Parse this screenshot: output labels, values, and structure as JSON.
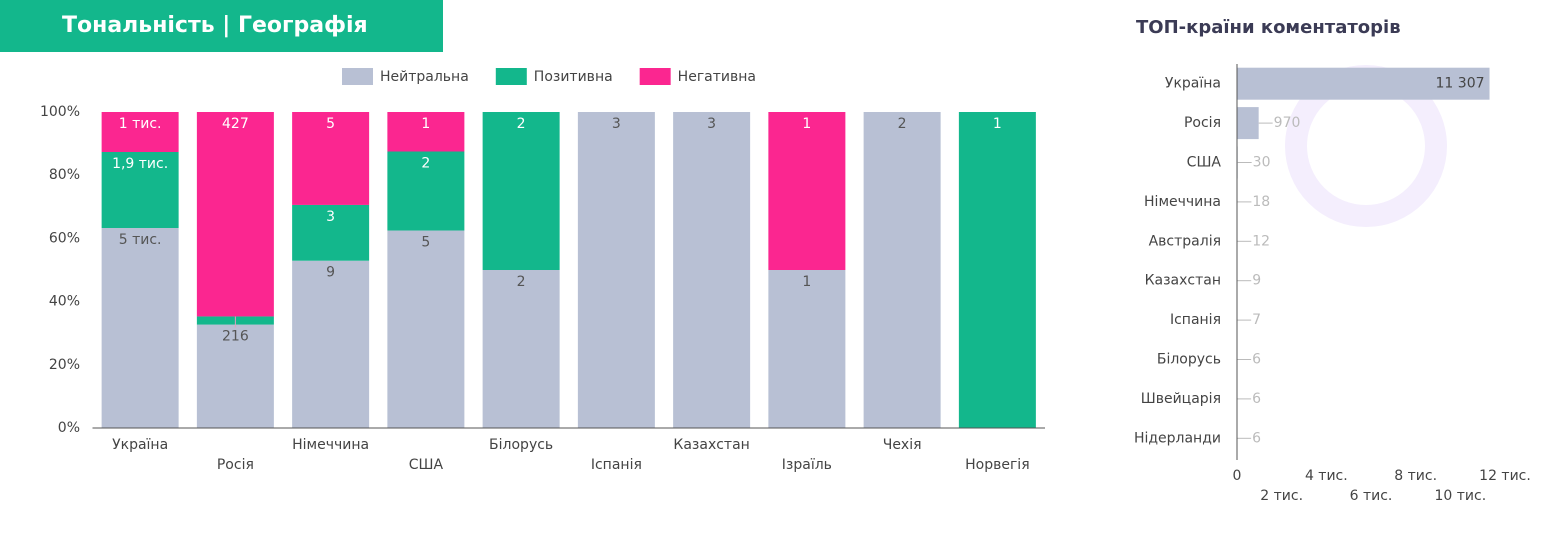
{
  "chart_data": [
    {
      "type": "bar",
      "stacking": "percent",
      "title": "Тональність | Географія",
      "categories": [
        "Україна",
        "Росія",
        "Німеччина",
        "США",
        "Білорусь",
        "Іспанія",
        "Казахстан",
        "Ізраїль",
        "Чехія",
        "Норвегія"
      ],
      "series": [
        {
          "name": "Нейтральна",
          "color": "#b8c0d4",
          "values": [
            5000,
            216,
            9,
            5,
            2,
            3,
            3,
            1,
            2,
            0
          ],
          "value_labels": [
            "5 тис.",
            null,
            null,
            null,
            null,
            null,
            null,
            null,
            null,
            null
          ]
        },
        {
          "name": "Позитивна",
          "color": "#13b78c",
          "values": [
            1900,
            17,
            3,
            2,
            2,
            0,
            0,
            0,
            0,
            1
          ],
          "value_labels": [
            "1,9 тис.",
            null,
            null,
            null,
            null,
            null,
            null,
            null,
            null,
            null
          ]
        },
        {
          "name": "Негативна",
          "color": "#fb2690",
          "values": [
            1000,
            427,
            5,
            1,
            0,
            0,
            0,
            1,
            0,
            0
          ],
          "value_labels": [
            "1 тис.",
            null,
            null,
            null,
            null,
            null,
            null,
            null,
            null,
            null
          ]
        }
      ],
      "ylim": [
        0,
        100
      ],
      "yticks": [
        {
          "value": 0,
          "label": "0%"
        },
        {
          "value": 20,
          "label": "20%"
        },
        {
          "value": 40,
          "label": "40%"
        },
        {
          "value": 60,
          "label": "60%"
        },
        {
          "value": 80,
          "label": "80%"
        },
        {
          "value": 100,
          "label": "100%"
        }
      ],
      "legend": "top"
    },
    {
      "type": "hbar",
      "title": "ТОП-країни коментаторів",
      "color": "#b8c0d4",
      "categories": [
        "Україна",
        "Росія",
        "США",
        "Німеччина",
        "Австралія",
        "Казахстан",
        "Іспанія",
        "Білорусь",
        "Швейцарія",
        "Нідерланди"
      ],
      "values": [
        11307,
        970,
        30,
        18,
        12,
        9,
        7,
        6,
        6,
        6
      ],
      "value_labels": [
        "11 307",
        null,
        null,
        null,
        null,
        null,
        null,
        null,
        null,
        null
      ],
      "xlim": [
        0,
        12000
      ],
      "xticks": [
        0,
        {
          "value": 2000,
          "label": "2 тис."
        },
        {
          "value": 4000,
          "label": "4 тис."
        },
        {
          "value": 6000,
          "label": "6 тис."
        },
        {
          "value": 8000,
          "label": "8 тис."
        },
        {
          "value": 10000,
          "label": "10 тис."
        },
        {
          "value": 12000,
          "label": "12 тис."
        }
      ]
    }
  ]
}
